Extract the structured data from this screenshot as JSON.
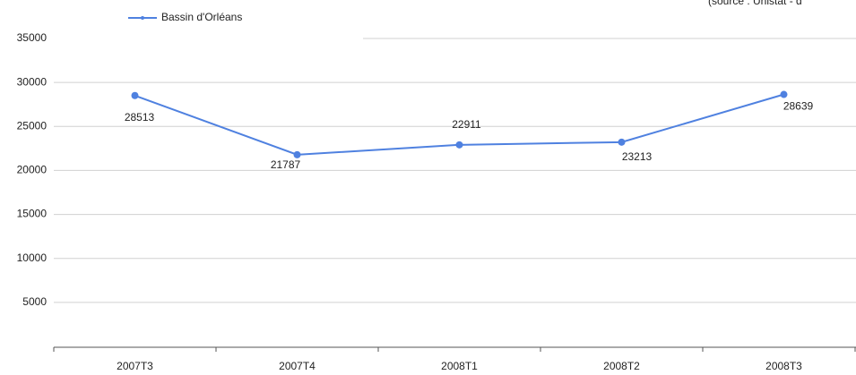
{
  "chart_data": {
    "type": "line",
    "source": "(source : Unistat - d",
    "categories": [
      "2007T3",
      "2007T4",
      "2008T1",
      "2008T2",
      "2008T3"
    ],
    "series": [
      {
        "name": "Bassin d'Orléans",
        "color": "#4f81e0",
        "values": [
          28513,
          21787,
          22911,
          23213,
          28639
        ]
      }
    ],
    "ylim": [
      0,
      35000
    ],
    "yticks": [
      5000,
      10000,
      15000,
      20000,
      25000,
      30000,
      35000
    ],
    "grid": true,
    "legend": "top-left"
  }
}
